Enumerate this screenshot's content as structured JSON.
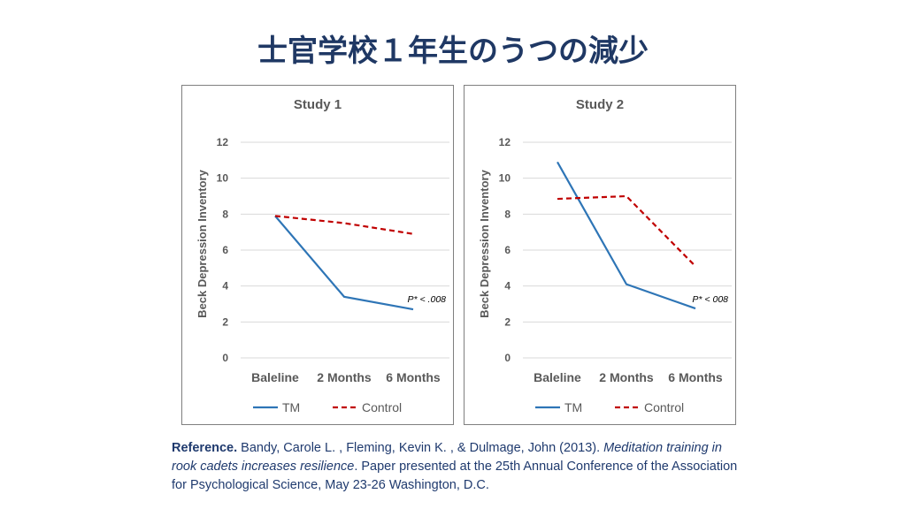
{
  "title": "士官学校１年生のうつの減少",
  "colors": {
    "title": "#1f3864",
    "tm": "#2e75b6",
    "control": "#c00000"
  },
  "chart_data": [
    {
      "type": "line",
      "title": "Study 1",
      "ylabel": "Beck Depression Inventory",
      "ylim": [
        0,
        12
      ],
      "yticks": [
        0,
        2,
        4,
        6,
        8,
        10,
        12
      ],
      "grid": true,
      "legend": "bottom",
      "categories": [
        "Baleline",
        "2 Months",
        "6 Months"
      ],
      "series": [
        {
          "name": "TM",
          "values": [
            7.9,
            3.4,
            2.7
          ],
          "style": "solid"
        },
        {
          "name": "Control",
          "values": [
            7.9,
            7.5,
            6.9
          ],
          "style": "dashed"
        }
      ],
      "annotation": "P* < .008"
    },
    {
      "type": "line",
      "title": "Study 2",
      "ylabel": "Beck Depression Inventory",
      "ylim": [
        0,
        12
      ],
      "yticks": [
        0,
        2,
        4,
        6,
        8,
        10,
        12
      ],
      "grid": true,
      "legend": "bottom",
      "categories": [
        "Baleline",
        "2 Months",
        "6 Months"
      ],
      "series": [
        {
          "name": "TM",
          "values": [
            10.9,
            4.1,
            2.75
          ],
          "style": "solid"
        },
        {
          "name": "Control",
          "values": [
            8.85,
            9.0,
            5.1
          ],
          "style": "dashed"
        }
      ],
      "annotation": "P* < 008"
    }
  ],
  "reference": {
    "label": "Reference.",
    "authors": " Bandy, Carole L. , Fleming, Kevin K. , & Dulmage, John (2013). ",
    "work": "Meditation training in rook cadets increases resilience",
    "rest": ". Paper presented at the 25th Annual Conference of the Association for Psychological Science, May 23-26 Washington, D.C."
  }
}
